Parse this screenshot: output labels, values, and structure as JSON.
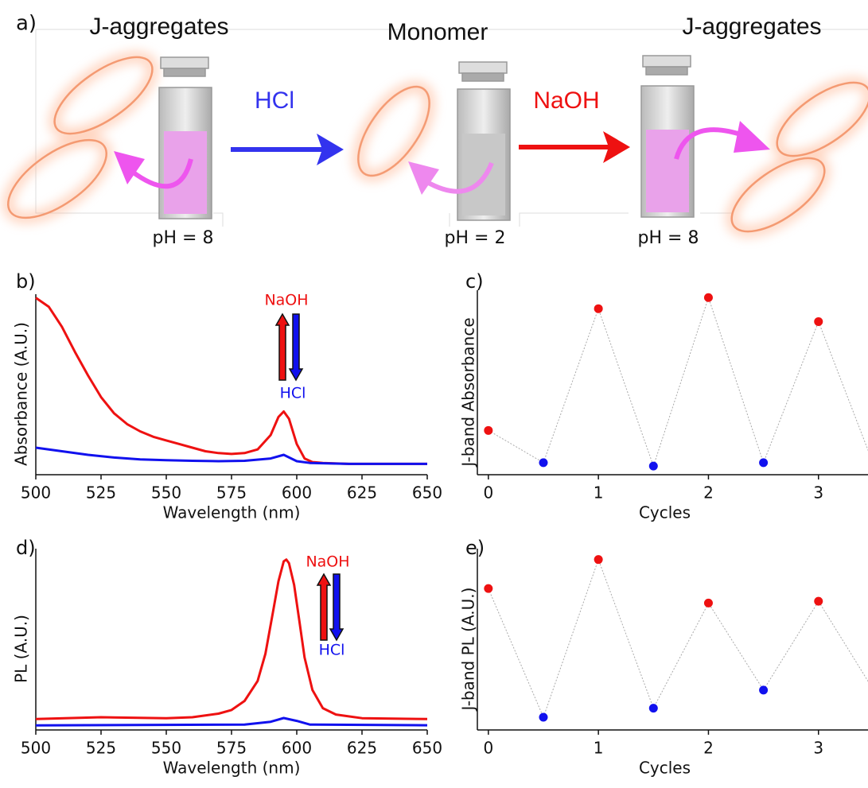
{
  "schematic": {
    "panel_label": "a)",
    "labels": [
      "J-aggregates",
      "Monomer",
      "J-aggregates"
    ],
    "reagents": [
      {
        "text": "HCl",
        "color": "#3333ee"
      },
      {
        "text": "NaOH",
        "color": "#ee1111"
      }
    ],
    "ph": [
      "pH = 8",
      "pH = 2",
      "pH = 8"
    ]
  },
  "chart_data": [
    {
      "type": "line",
      "panel_label": "b)",
      "xlabel": "Wavelength (nm)",
      "ylabel": "Absorbance (A.U.)",
      "xlim": [
        500,
        650
      ],
      "ylim": [
        0,
        1
      ],
      "xticks": [
        500,
        525,
        550,
        575,
        600,
        625,
        650
      ],
      "series": [
        {
          "color": "#ee1111",
          "x": [
            500,
            505,
            510,
            515,
            520,
            525,
            530,
            535,
            540,
            545,
            550,
            555,
            560,
            565,
            570,
            575,
            580,
            585,
            590,
            593,
            595,
            597,
            600,
            603,
            606,
            610,
            620,
            630,
            640,
            650
          ],
          "values": [
            0.98,
            0.93,
            0.82,
            0.68,
            0.55,
            0.43,
            0.34,
            0.28,
            0.24,
            0.21,
            0.19,
            0.17,
            0.15,
            0.13,
            0.12,
            0.115,
            0.12,
            0.14,
            0.22,
            0.32,
            0.35,
            0.31,
            0.17,
            0.09,
            0.07,
            0.065,
            0.06,
            0.06,
            0.06,
            0.06
          ]
        },
        {
          "color": "#1111ee",
          "x": [
            500,
            510,
            520,
            530,
            540,
            550,
            560,
            570,
            580,
            590,
            595,
            600,
            605,
            620,
            650
          ],
          "values": [
            0.15,
            0.13,
            0.11,
            0.095,
            0.085,
            0.08,
            0.077,
            0.075,
            0.077,
            0.09,
            0.11,
            0.075,
            0.065,
            0.06,
            0.06
          ]
        }
      ],
      "annotations": [
        {
          "text": "NaOH",
          "color": "#ee1111"
        },
        {
          "text": "HCl",
          "color": "#1111ee"
        }
      ]
    },
    {
      "type": "scatter",
      "panel_label": "c)",
      "xlabel": "Cycles",
      "ylabel": "J-band Absorbance",
      "xlim": [
        -0.1,
        3.45
      ],
      "ylim": [
        0,
        1
      ],
      "xticks": [
        0,
        1,
        2,
        3
      ],
      "x": [
        0,
        0.5,
        1,
        1.5,
        2,
        2.5,
        3,
        3.5
      ],
      "values": [
        0.24,
        0.065,
        0.9,
        0.047,
        0.96,
        0.065,
        0.83,
        0.056
      ],
      "colors": [
        "#ee1111",
        "#1111ee",
        "#ee1111",
        "#1111ee",
        "#ee1111",
        "#1111ee",
        "#ee1111",
        "#1111ee"
      ]
    },
    {
      "type": "line",
      "panel_label": "d)",
      "xlabel": "Wavelength (nm)",
      "ylabel": "PL (A.U.)",
      "xlim": [
        500,
        650
      ],
      "ylim": [
        0,
        1
      ],
      "xticks": [
        500,
        525,
        550,
        575,
        600,
        625,
        650
      ],
      "series": [
        {
          "color": "#ee1111",
          "x": [
            500,
            525,
            550,
            560,
            570,
            575,
            580,
            585,
            588,
            591,
            593,
            595,
            596,
            597,
            599,
            601,
            603,
            606,
            610,
            615,
            625,
            650
          ],
          "values": [
            0.06,
            0.07,
            0.065,
            0.07,
            0.09,
            0.11,
            0.16,
            0.27,
            0.42,
            0.66,
            0.82,
            0.93,
            0.94,
            0.92,
            0.8,
            0.6,
            0.4,
            0.22,
            0.12,
            0.085,
            0.065,
            0.06
          ]
        },
        {
          "color": "#1111ee",
          "x": [
            500,
            580,
            590,
            595,
            600,
            605,
            650
          ],
          "values": [
            0.025,
            0.03,
            0.045,
            0.066,
            0.05,
            0.03,
            0.026
          ]
        }
      ],
      "annotations": [
        {
          "text": "NaOH",
          "color": "#ee1111"
        },
        {
          "text": "HCl",
          "color": "#1111ee"
        }
      ]
    },
    {
      "type": "scatter",
      "panel_label": "e)",
      "xlabel": "Cycles",
      "ylabel": "J-band PL (A.U.)",
      "xlim": [
        -0.1,
        3.45
      ],
      "ylim": [
        0,
        1
      ],
      "xticks": [
        0,
        1,
        2,
        3
      ],
      "x": [
        0,
        0.5,
        1,
        1.5,
        2,
        2.5,
        3,
        3.5
      ],
      "values": [
        0.78,
        0.07,
        0.94,
        0.12,
        0.7,
        0.22,
        0.71,
        0.22
      ],
      "colors": [
        "#ee1111",
        "#1111ee",
        "#ee1111",
        "#1111ee",
        "#ee1111",
        "#1111ee",
        "#ee1111",
        "#1111ee"
      ]
    }
  ]
}
